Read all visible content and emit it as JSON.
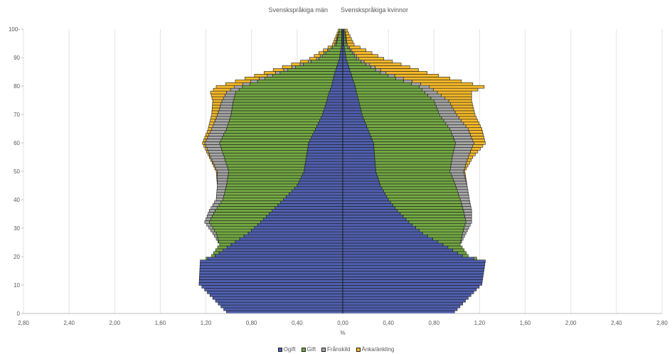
{
  "chart_data": {
    "type": "bar",
    "orientation": "horizontal-stacked-pyramid",
    "left_title": "Svenskspråkiga män",
    "right_title": "Svenskspråkiga kvinnor",
    "xlabel": "%",
    "ylabel": "",
    "xlim": [
      -2.8,
      2.8
    ],
    "ylim": [
      0,
      100
    ],
    "x_tick_labels": [
      "2,80",
      "2,40",
      "2,00",
      "1,60",
      "1,20",
      "0,80",
      "0,40",
      "0,00",
      "0,40",
      "0,80",
      "1,20",
      "1,60",
      "2,00",
      "2,40",
      "2,80"
    ],
    "y_tick_labels": [
      "0",
      "10",
      "20",
      "30",
      "40",
      "50",
      "60",
      "70",
      "80",
      "90",
      "100-"
    ],
    "grid": "vertical",
    "legend_position": "bottom",
    "series": [
      {
        "name": "Ogift",
        "color": "#4f5fae"
      },
      {
        "name": "Gift",
        "color": "#73a843"
      },
      {
        "name": "Frånskild",
        "color": "#a6a6a6"
      },
      {
        "name": "Änka/änkling",
        "color": "#f4b82a"
      }
    ],
    "ages": [
      0,
      10,
      18,
      20,
      24,
      28,
      32,
      36,
      40,
      45,
      50,
      55,
      60,
      65,
      70,
      75,
      78,
      80,
      85,
      90,
      95,
      100
    ],
    "men": {
      "Ogift": [
        1.02,
        1.26,
        1.25,
        1.12,
        0.98,
        0.83,
        0.72,
        0.62,
        0.52,
        0.4,
        0.34,
        0.32,
        0.3,
        0.24,
        0.18,
        0.14,
        0.12,
        0.1,
        0.07,
        0.03,
        0.01,
        0.01
      ],
      "Gift": [
        0.0,
        0.0,
        0.0,
        0.03,
        0.1,
        0.28,
        0.45,
        0.5,
        0.53,
        0.62,
        0.66,
        0.72,
        0.78,
        0.78,
        0.8,
        0.82,
        0.82,
        0.78,
        0.48,
        0.18,
        0.05,
        0.02
      ],
      "Frånskild": [
        0.0,
        0.0,
        0.0,
        0.0,
        0.0,
        0.03,
        0.04,
        0.05,
        0.06,
        0.08,
        0.1,
        0.12,
        0.13,
        0.13,
        0.12,
        0.1,
        0.08,
        0.07,
        0.04,
        0.02,
        0.01,
        0.0
      ],
      "Änka/änkling": [
        0.0,
        0.0,
        0.0,
        0.0,
        0.0,
        0.0,
        0.0,
        0.0,
        0.0,
        0.0,
        0.01,
        0.01,
        0.02,
        0.03,
        0.05,
        0.08,
        0.14,
        0.16,
        0.1,
        0.06,
        0.02,
        0.01
      ]
    },
    "women": {
      "Ogift": [
        0.98,
        1.22,
        1.25,
        1.05,
        0.88,
        0.7,
        0.58,
        0.48,
        0.4,
        0.33,
        0.29,
        0.28,
        0.27,
        0.22,
        0.17,
        0.14,
        0.12,
        0.11,
        0.07,
        0.03,
        0.01,
        0.01
      ],
      "Gift": [
        0.0,
        0.0,
        0.0,
        0.05,
        0.15,
        0.35,
        0.5,
        0.58,
        0.63,
        0.66,
        0.65,
        0.68,
        0.72,
        0.72,
        0.68,
        0.66,
        0.6,
        0.56,
        0.26,
        0.09,
        0.02,
        0.01
      ],
      "Frånskild": [
        0.0,
        0.0,
        0.0,
        0.0,
        0.0,
        0.03,
        0.05,
        0.07,
        0.08,
        0.1,
        0.12,
        0.14,
        0.16,
        0.16,
        0.15,
        0.13,
        0.11,
        0.09,
        0.05,
        0.02,
        0.01,
        0.0
      ],
      "Änka/änkling": [
        0.0,
        0.0,
        0.0,
        0.0,
        0.0,
        0.0,
        0.0,
        0.0,
        0.0,
        0.0,
        0.01,
        0.04,
        0.1,
        0.12,
        0.16,
        0.2,
        0.3,
        0.48,
        0.36,
        0.22,
        0.06,
        0.02
      ]
    }
  }
}
